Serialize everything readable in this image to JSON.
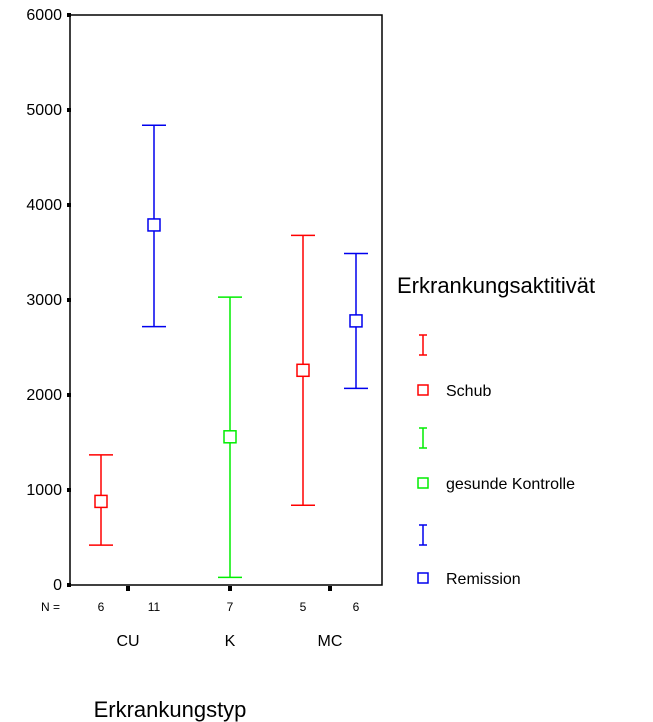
{
  "chart_data": {
    "type": "errorbar",
    "title": "",
    "xlabel": "Erkrankungstyp",
    "ylabel": "",
    "ylim": [
      0,
      6000
    ],
    "y_ticks": [
      "0",
      "1000",
      "2000",
      "3000",
      "4000",
      "5000",
      "6000"
    ],
    "categories": [
      "CU",
      "K",
      "MC"
    ],
    "n_prefix": "N =",
    "legend_title": "Erkrankungsaktitivät",
    "legend_position": "right",
    "series": [
      {
        "name": "Schub",
        "color": "#ff0000",
        "points": [
          {
            "category": "CU",
            "n": "6",
            "mean": 880,
            "low": 420,
            "high": 1370
          },
          {
            "category": "MC",
            "n": "5",
            "mean": 2260,
            "low": 840,
            "high": 3680
          }
        ]
      },
      {
        "name": "gesunde Kontrolle",
        "color": "#00ee00",
        "points": [
          {
            "category": "K",
            "n": "7",
            "mean": 1560,
            "low": 80,
            "high": 3030
          }
        ]
      },
      {
        "name": "Remission",
        "color": "#0000ee",
        "points": [
          {
            "category": "CU",
            "n": "11",
            "mean": 3790,
            "low": 2720,
            "high": 4840
          },
          {
            "category": "MC",
            "n": "6",
            "mean": 2780,
            "low": 2070,
            "high": 3490
          }
        ]
      }
    ]
  }
}
